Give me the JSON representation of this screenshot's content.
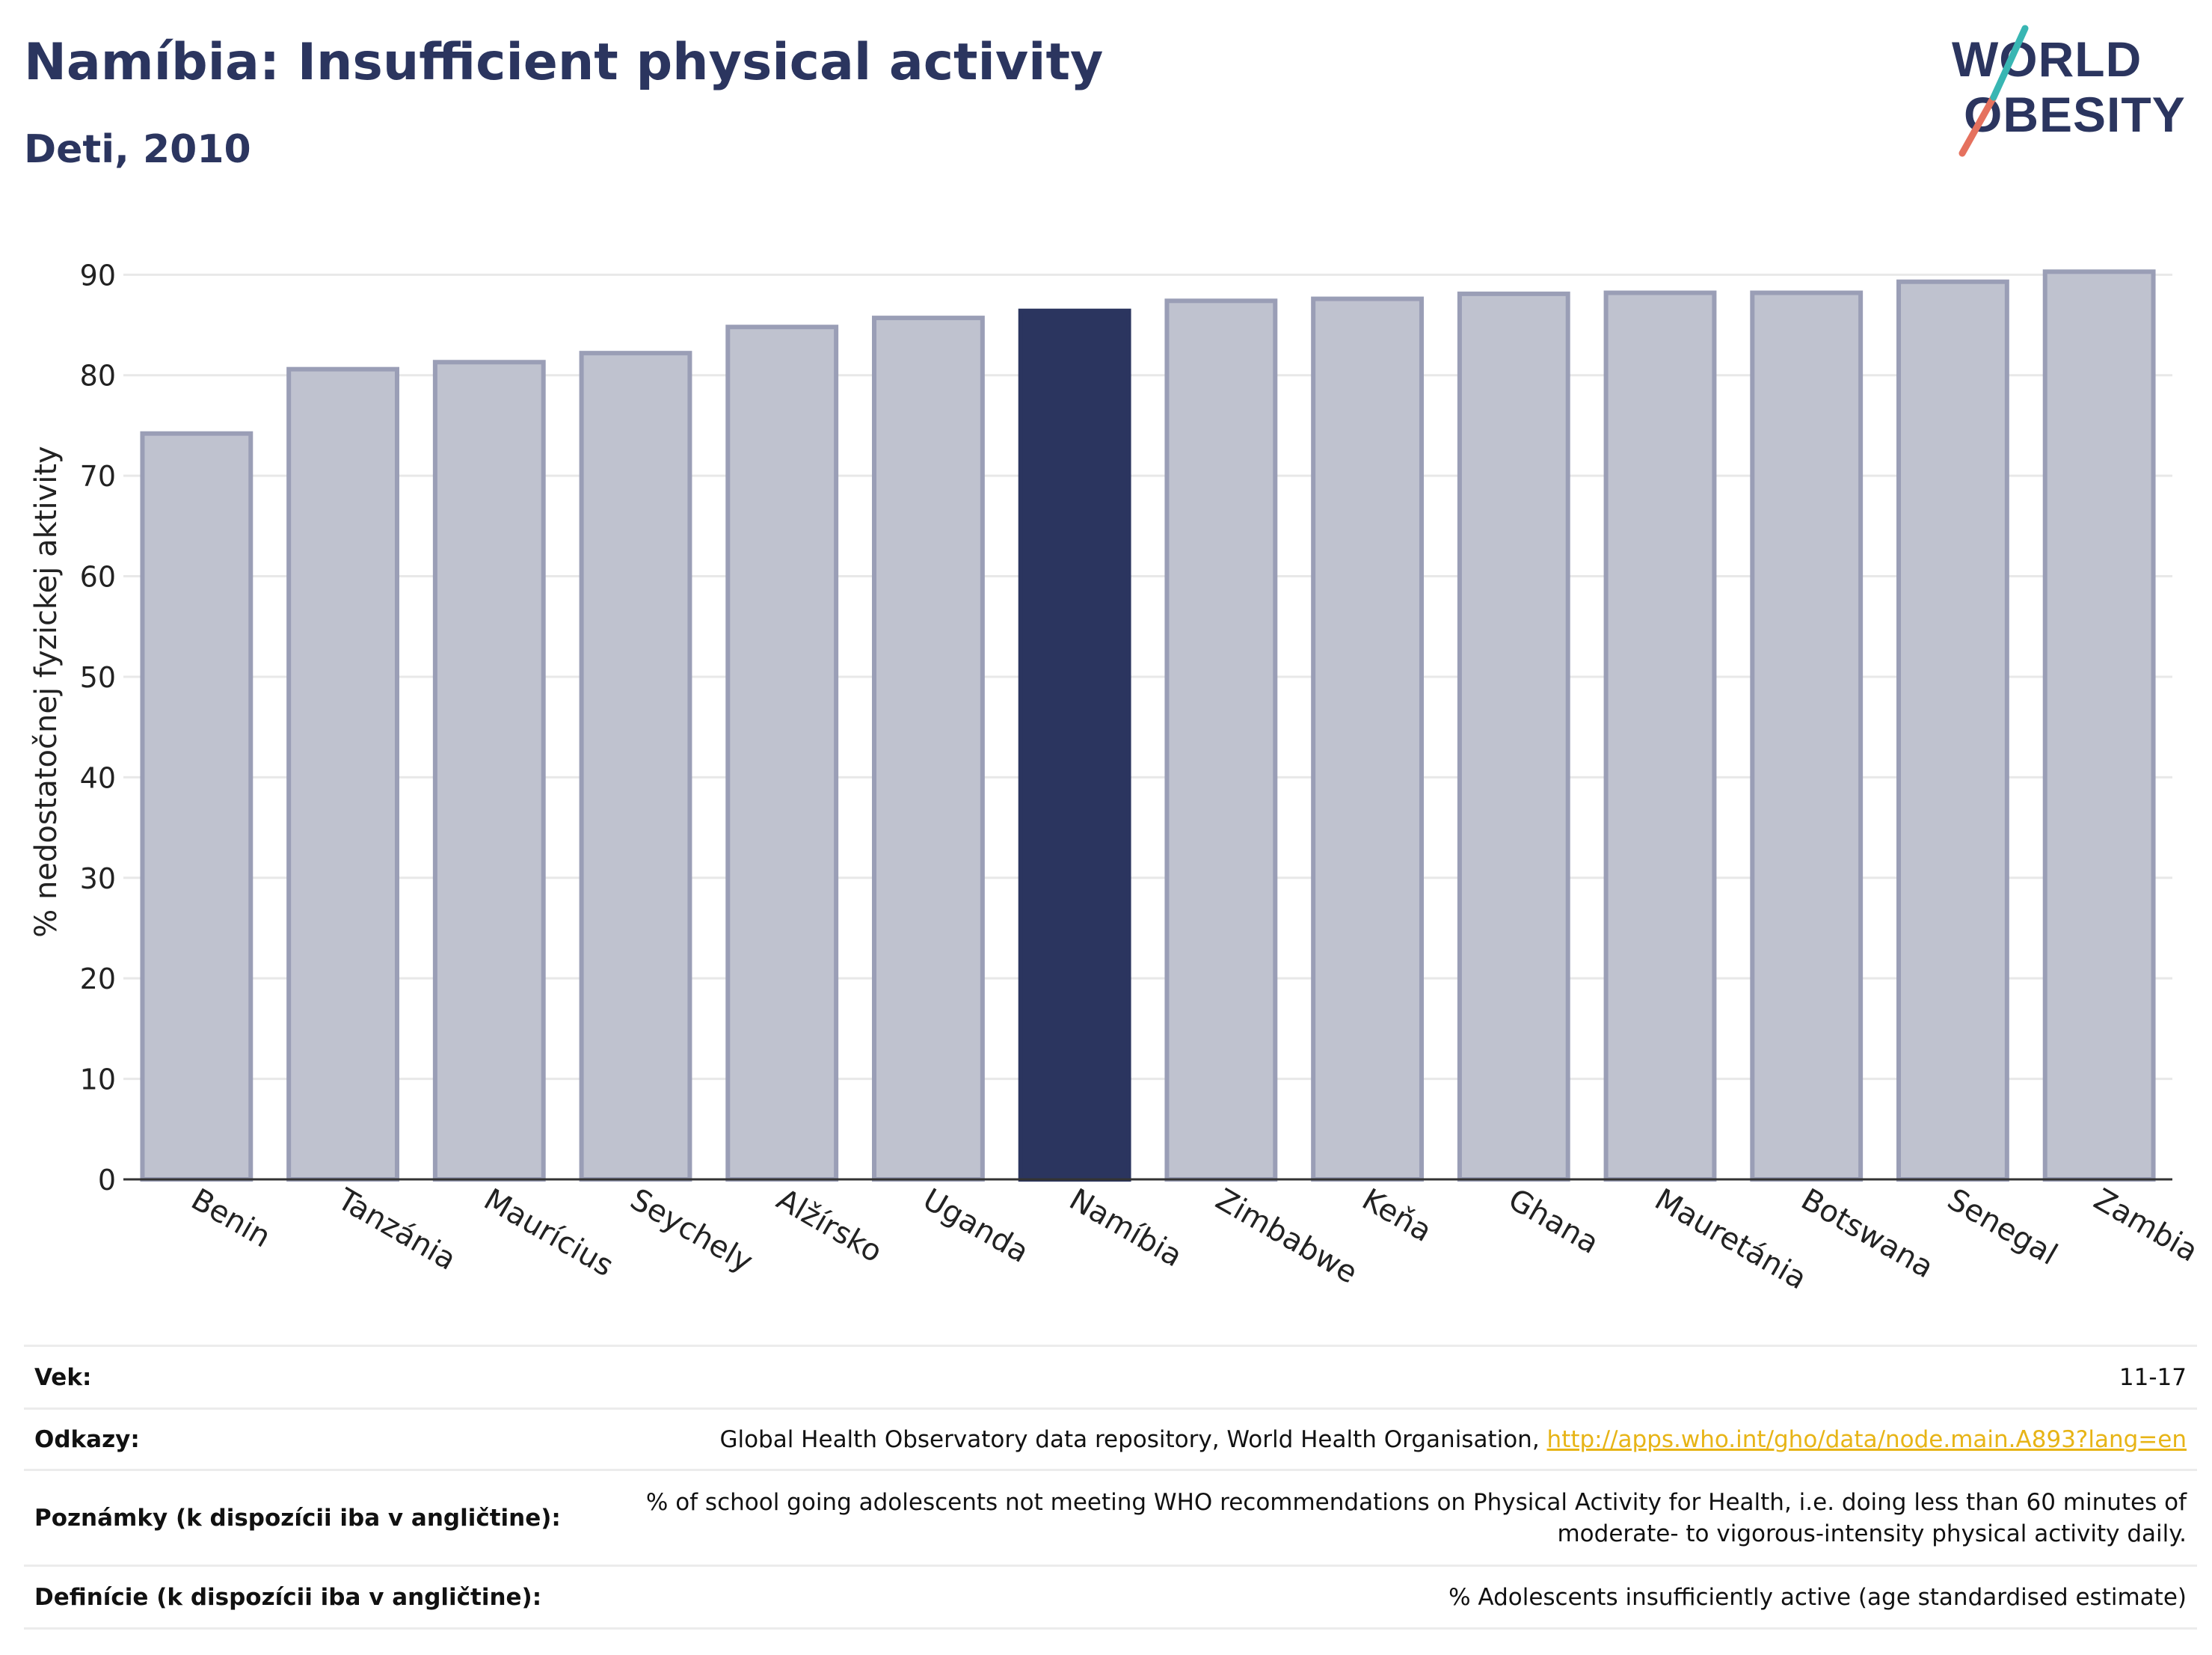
{
  "header": {
    "title": "Namíbia: Insufficient physical activity",
    "subtitle": "Deti, 2010"
  },
  "logo": {
    "line1": "WORLD",
    "line2": "OBESITY"
  },
  "chart_data": {
    "type": "bar",
    "categories": [
      "Benin",
      "Tanzánia",
      "Maurícius",
      "Seychely",
      "Alžírsko",
      "Uganda",
      "Namíbia",
      "Zimbabwe",
      "Keňa",
      "Ghana",
      "Mauretánia",
      "Botswana",
      "Senegal",
      "Zambia"
    ],
    "values": [
      74.2,
      80.6,
      81.3,
      82.2,
      84.8,
      85.7,
      86.4,
      87.4,
      87.6,
      88.1,
      88.2,
      88.2,
      89.3,
      90.3
    ],
    "highlight": "Namíbia",
    "ylabel": "% nedostatočnej fyzickej aktivity",
    "xlabel": "",
    "ylim": [
      0,
      93
    ],
    "yticks": [
      0,
      10,
      20,
      30,
      40,
      50,
      60,
      70,
      80,
      90
    ],
    "grid": true,
    "colors": {
      "bar": "#bfc2cf",
      "bar_border": "#9a9eb6",
      "highlight": "#2b355f",
      "grid": "#e8e8e8",
      "axis": "#333333"
    }
  },
  "meta": {
    "rows": [
      {
        "key": "Vek:",
        "value": "11-17"
      },
      {
        "key": "Odkazy:",
        "value": "Global Health Observatory data repository, World Health Organisation, ",
        "link": "http://apps.who.int/gho/data/node.main.A893?lang=en"
      },
      {
        "key": "Poznámky (k dispozícii iba v angličtine):",
        "value": "% of school going adolescents not meeting WHO recommendations on Physical Activity for Health, i.e. doing less than 60 minutes of moderate- to vigorous-intensity physical activity daily."
      },
      {
        "key": "Definície (k dispozícii iba v angličtine):",
        "value": "% Adolescents insufficiently active (age standardised estimate)"
      }
    ]
  }
}
